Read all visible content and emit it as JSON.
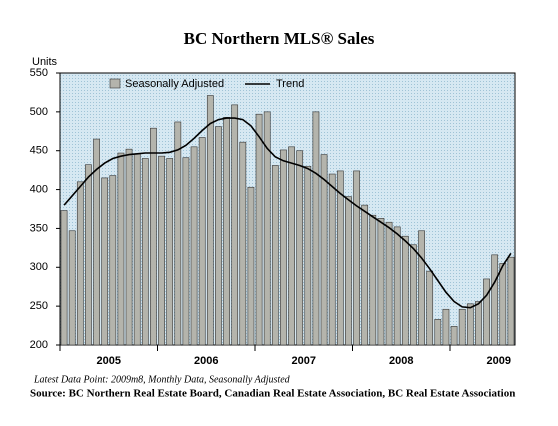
{
  "chart_data": {
    "type": "bar_line",
    "title": "BC Northern MLS® Sales",
    "ylabel": "Units",
    "categories": [
      null,
      null,
      null,
      null,
      null,
      null,
      null,
      null,
      null,
      null,
      null,
      null,
      null,
      null,
      null,
      null,
      null,
      null,
      null,
      null,
      null,
      null,
      null,
      null,
      null,
      null,
      null,
      null,
      null,
      null,
      null,
      null,
      null,
      null,
      null,
      null,
      null,
      null,
      null,
      null,
      null,
      null,
      null,
      null,
      null,
      null,
      null,
      null,
      null,
      null,
      null,
      null,
      null,
      null,
      null,
      null
    ],
    "year_labels": [
      "2005",
      "2006",
      "2007",
      "2008",
      "2009"
    ],
    "series": [
      {
        "name": "Seasonally Adjusted",
        "kind": "bar",
        "color": "#b4b4ac",
        "values": [
          373,
          347,
          410,
          432,
          465,
          415,
          418,
          447,
          452,
          446,
          440,
          479,
          443,
          440,
          487,
          441,
          455,
          467,
          521,
          481,
          493,
          509,
          461,
          403,
          497,
          500,
          431,
          451,
          455,
          450,
          430,
          500,
          445,
          420,
          424,
          391,
          424,
          380,
          367,
          363,
          358,
          352,
          340,
          329,
          347,
          295,
          233,
          246,
          224,
          246,
          253,
          256,
          285,
          316,
          305,
          313
        ]
      },
      {
        "name": "Trend",
        "kind": "line",
        "color": "#000000",
        "values": [
          380,
          392,
          404,
          416,
          426,
          434,
          440,
          443,
          445,
          446,
          447,
          447,
          447,
          448,
          451,
          457,
          466,
          476,
          485,
          490,
          492,
          492,
          490,
          482,
          468,
          453,
          442,
          437,
          434,
          431,
          427,
          421,
          413,
          404,
          395,
          387,
          379,
          372,
          365,
          358,
          351,
          343,
          334,
          324,
          312,
          298,
          283,
          268,
          256,
          249,
          248,
          253,
          264,
          281,
          302,
          318
        ]
      }
    ],
    "ylim": [
      200,
      550
    ],
    "yticks": [
      200,
      250,
      300,
      350,
      400,
      450,
      500,
      550
    ],
    "legend": "top",
    "note": "Latest Data Point: 2009m8, Monthly Data, Seasonally Adjusted",
    "source": "Source: BC Northern Real Estate Board, Canadian Real Estate Association, BC Real Estate Association"
  }
}
